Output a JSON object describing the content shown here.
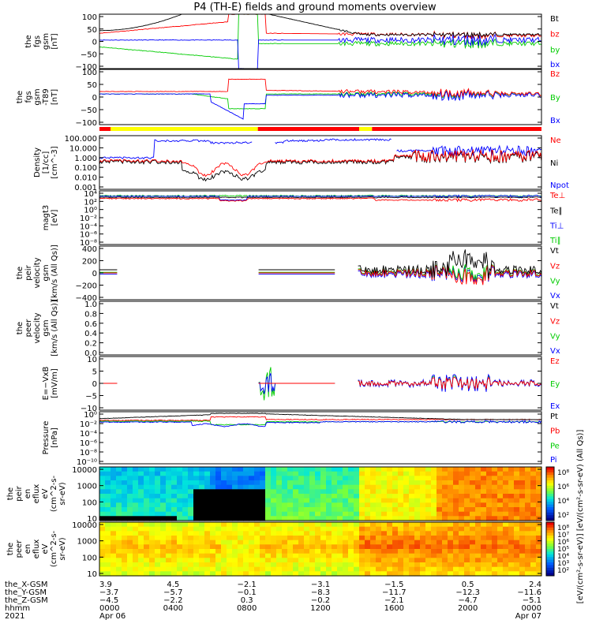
{
  "title": "P4 (TH-E) fields and ground moments overview",
  "colors": {
    "black": "#000000",
    "red": "#ff0000",
    "green": "#00cc00",
    "blue": "#0000ff",
    "yellow": "#ffff00"
  },
  "chart_data": {
    "type": "line",
    "time_range": [
      "2021-04-06 00:00",
      "2021-04-07 00:00"
    ],
    "panels": [
      {
        "id": "fgs-gsm",
        "ylabel": [
          "the",
          "fgs",
          "gsm",
          "[nT]"
        ],
        "ylim": [
          -100,
          100
        ],
        "yticks": [
          "100",
          "50",
          "0",
          "−50",
          "−100"
        ],
        "legend": [
          "Bt",
          "bz",
          "by",
          "bx"
        ],
        "legend_colors": [
          "black",
          "red",
          "green",
          "blue"
        ]
      },
      {
        "id": "fgs-gsm-t89",
        "ylabel": [
          "the",
          "fgs",
          "gsm",
          "-T89",
          "[nT]"
        ],
        "ylim": [
          -125,
          100
        ],
        "yticks": [
          "100",
          "50",
          "0",
          "−50",
          "−100"
        ],
        "legend": [
          "Bz",
          "By",
          "Bx"
        ],
        "legend_colors": [
          "red",
          "green",
          "blue"
        ]
      },
      {
        "id": "density",
        "ylabel": [
          "Density",
          "[1/cc]",
          "[cm^-3]"
        ],
        "scale": "log",
        "yticks": [
          "100.000",
          "10.000",
          "1.000",
          "0.100",
          "0.010",
          "0.001"
        ],
        "legend": [
          "Ne",
          "Ni",
          "Npot"
        ],
        "legend_colors": [
          "red",
          "black",
          "blue"
        ]
      },
      {
        "id": "temperature",
        "ylabel": [
          "magt3",
          "[eV]"
        ],
        "scale": "log",
        "yticks": [
          "10⁴",
          "10²",
          "10⁰",
          "10⁻²",
          "10⁻⁴",
          "10⁻⁶",
          "10⁻⁸"
        ],
        "legend": [
          "Te⊥",
          "Te∥",
          "Ti⊥",
          "Ti∥"
        ],
        "legend_colors": [
          "red",
          "black",
          "blue",
          "green"
        ]
      },
      {
        "id": "peir-velocity",
        "ylabel": [
          "the",
          "peir",
          "velocity",
          "gsm",
          "[km/s (All Qs)]"
        ],
        "ylim": [
          -400,
          400
        ],
        "yticks": [
          "400",
          "200",
          "0",
          "−200",
          "−400"
        ],
        "legend": [
          "Vt",
          "Vz",
          "Vy",
          "Vx"
        ],
        "legend_colors": [
          "black",
          "red",
          "green",
          "blue"
        ]
      },
      {
        "id": "peer-velocity",
        "ylabel": [
          "the",
          "peer",
          "velocity",
          "gsm",
          "[km/s (All Qs)]"
        ],
        "ylim": [
          0,
          1
        ],
        "yticks": [
          "1.0",
          "0.8",
          "0.6",
          "0.4",
          "0.2",
          "0.0"
        ],
        "legend": [
          "Vt",
          "Vz",
          "Vy",
          "Vx"
        ],
        "legend_colors": [
          "black",
          "red",
          "green",
          "blue"
        ]
      },
      {
        "id": "efield",
        "ylabel": [
          "E=−VxB",
          "[mV/m]"
        ],
        "ylim": [
          -12,
          12
        ],
        "yticks": [
          "10",
          "5",
          "0",
          "−5",
          "−10"
        ],
        "legend": [
          "Ez",
          "Ey",
          "Ex"
        ],
        "legend_colors": [
          "red",
          "green",
          "blue"
        ]
      },
      {
        "id": "pressure",
        "ylabel": [
          "Pressure",
          "[nPa]"
        ],
        "scale": "log",
        "yticks": [
          "10⁰",
          "10⁻²",
          "10⁻⁴",
          "10⁻⁶",
          "10⁻⁸",
          "10⁻¹⁰"
        ],
        "legend": [
          "Pt",
          "Pb",
          "Pe",
          "Pi"
        ],
        "legend_colors": [
          "black",
          "red",
          "green",
          "blue"
        ]
      },
      {
        "id": "peir-spectrogram",
        "type": "heatmap",
        "ylabel": [
          "the",
          "peir",
          "en",
          "eflux",
          "eV",
          "(cm^2-s-",
          "sr-eV)"
        ],
        "yticks": [
          "10000",
          "1000",
          "100",
          "10"
        ],
        "colorbar_ticks": [
          "10⁸",
          "10⁶",
          "10⁴",
          "10²"
        ]
      },
      {
        "id": "peer-spectrogram",
        "type": "heatmap",
        "ylabel": [
          "the",
          "peer",
          "en",
          "eflux",
          "eV",
          "(cm^2-s-",
          "sr-eV)"
        ],
        "yticks": [
          "10000",
          "1000",
          "100",
          "10"
        ],
        "colorbar_ticks": [
          "10⁸",
          "10⁷",
          "10⁶",
          "10⁵",
          "10⁴",
          "10³",
          "10²"
        ]
      }
    ],
    "colorbar_label": "[eV/(cm²-s-sr-eV)] [eV/(cm²-s-sr-eV) (All Qs)]",
    "x_axis_rows": [
      {
        "label": "the_X-GSM",
        "values": [
          "3.9",
          "4.5",
          "−2.1",
          "−3.1",
          "−1.5",
          "0.5",
          "2.4"
        ]
      },
      {
        "label": "the_Y-GSM",
        "values": [
          "−3.7",
          "−5.7",
          "−0.1",
          "−8.3",
          "−11.7",
          "−12.3",
          "−11.6"
        ]
      },
      {
        "label": "the_Z-GSM",
        "values": [
          "−4.5",
          "−2.2",
          "0.3",
          "−0.2",
          "−2.1",
          "−4.7",
          "−5.1"
        ]
      },
      {
        "label": "hhmm",
        "values": [
          "0000",
          "0400",
          "0800",
          "1200",
          "1600",
          "2000",
          "0000"
        ]
      },
      {
        "label": "2021",
        "values": [
          "Apr 06",
          "",
          "",
          "",
          "",
          "",
          "Apr 07"
        ]
      }
    ]
  }
}
